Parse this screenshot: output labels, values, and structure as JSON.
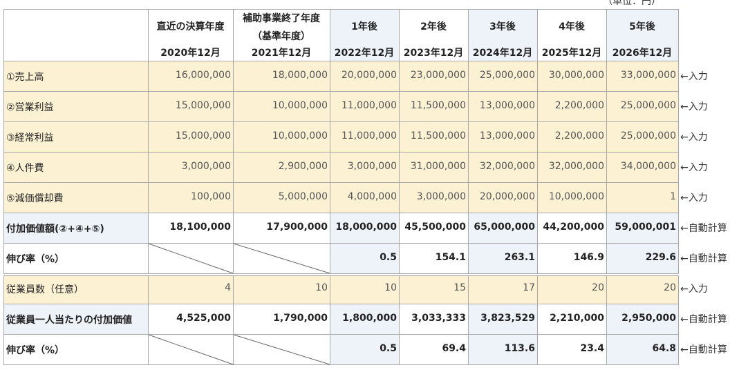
{
  "unit": "（単位：円）",
  "header": {
    "columns": [
      {
        "lines": [
          "直近の決算年度"
        ],
        "date": "2020年12月"
      },
      {
        "lines": [
          "補助事業終了年度",
          "（基準年度）"
        ],
        "date": "2021年12月"
      },
      {
        "lines": [
          "1年後"
        ],
        "date": "2022年12月"
      },
      {
        "lines": [
          "2年後"
        ],
        "date": "2023年12月"
      },
      {
        "lines": [
          "3年後"
        ],
        "date": "2024年12月"
      },
      {
        "lines": [
          "4年後"
        ],
        "date": "2025年12月"
      },
      {
        "lines": [
          "5年後"
        ],
        "date": "2026年12月"
      }
    ]
  },
  "rows": [
    {
      "label": "①売上高",
      "values": [
        "16,000,000",
        "18,000,000",
        "20,000,000",
        "23,000,000",
        "25,000,000",
        "30,000,000",
        "33,000,000"
      ],
      "note": "←入力"
    },
    {
      "label": "②営業利益",
      "values": [
        "15,000,000",
        "10,000,000",
        "11,000,000",
        "11,500,000",
        "13,000,000",
        "2,200,000",
        "25,000,000"
      ],
      "note": "←入力"
    },
    {
      "label": "③経常利益",
      "values": [
        "15,000,000",
        "10,000,000",
        "11,000,000",
        "11,500,000",
        "13,000,000",
        "2,200,000",
        "25,000,000"
      ],
      "note": "←入力"
    },
    {
      "label": "④人件費",
      "values": [
        "3,000,000",
        "2,900,000",
        "3,000,000",
        "31,000,000",
        "32,000,000",
        "32,000,000",
        "34,000,000"
      ],
      "note": "←入力"
    },
    {
      "label": "⑤減価償却費",
      "values": [
        "100,000",
        "5,000,000",
        "4,000,000",
        "3,000,000",
        "20,000,000",
        "10,000,000",
        "1"
      ],
      "note": "←入力"
    },
    {
      "label": "付加価値額(②+④+⑤)",
      "values": [
        "18,100,000",
        "17,900,000",
        "18,000,000",
        "45,500,000",
        "65,000,000",
        "44,200,000",
        "59,000,001"
      ],
      "note": "←自動計算"
    },
    {
      "label": "伸び率（%）",
      "values": [
        null,
        null,
        "0.5",
        "154.1",
        "263.1",
        "146.9",
        "229.6"
      ],
      "note": "←自動計算"
    },
    {
      "label": "従業員数（任意）",
      "values": [
        "4",
        "10",
        "10",
        "15",
        "17",
        "20",
        "20"
      ],
      "note": "←入力"
    },
    {
      "label": "従業員一人当たりの付加価値",
      "values": [
        "4,525,000",
        "1,790,000",
        "1,800,000",
        "3,033,333",
        "3,823,529",
        "2,210,000",
        "2,950,000"
      ],
      "note": "←自動計算"
    },
    {
      "label": "伸び率（%）",
      "values": [
        null,
        null,
        "0.5",
        "69.4",
        "113.6",
        "23.4",
        "64.8"
      ],
      "note": "←自動計算"
    }
  ]
}
